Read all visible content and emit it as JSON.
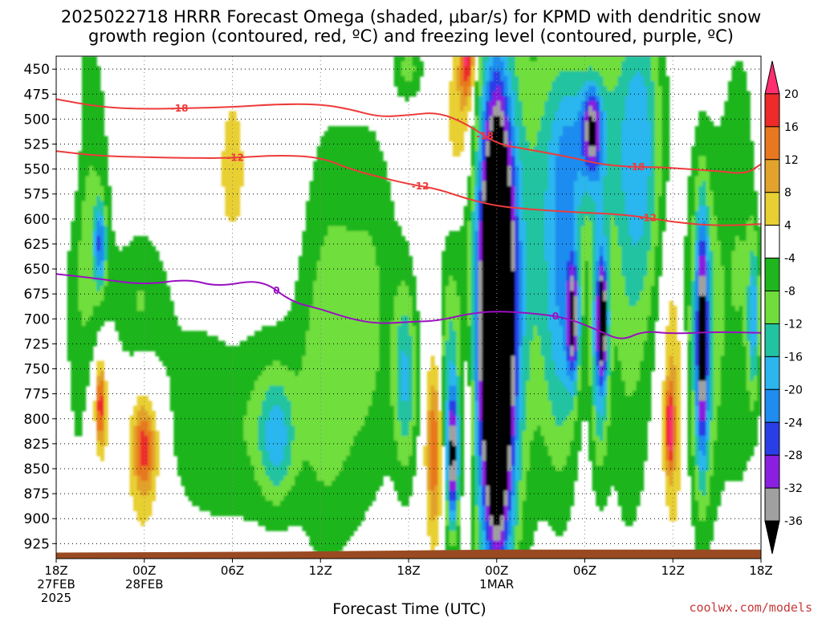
{
  "title_line1": "2025022718 HRRR Forecast Omega (shaded, μbar/s) for KPMD with dendritic snow",
  "title_line2": "growth region (contoured, red, ºC) and freezing level (contoured, purple, ºC)",
  "x_axis_title": "Forecast Time (UTC)",
  "credit": "coolwx.com/models",
  "chart_data": {
    "type": "heatmap",
    "y_ticks": [
      450,
      475,
      500,
      525,
      550,
      575,
      600,
      625,
      650,
      675,
      700,
      725,
      750,
      775,
      800,
      825,
      850,
      875,
      900,
      925
    ],
    "y_range": [
      437,
      940
    ],
    "x_range_hours": [
      0,
      48
    ],
    "x_ticks": [
      {
        "h": 0,
        "l1": "18Z",
        "l2": "27FEB",
        "l3": "2025"
      },
      {
        "h": 6,
        "l1": "00Z",
        "l2": "28FEB",
        "l3": ""
      },
      {
        "h": 12,
        "l1": "06Z",
        "l2": "",
        "l3": ""
      },
      {
        "h": 18,
        "l1": "12Z",
        "l2": "",
        "l3": ""
      },
      {
        "h": 24,
        "l1": "18Z",
        "l2": "",
        "l3": ""
      },
      {
        "h": 30,
        "l1": "00Z",
        "l2": "1MAR",
        "l3": ""
      },
      {
        "h": 36,
        "l1": "06Z",
        "l2": "",
        "l3": ""
      },
      {
        "h": 42,
        "l1": "12Z",
        "l2": "",
        "l3": ""
      },
      {
        "h": 48,
        "l1": "18Z",
        "l2": "",
        "l3": ""
      }
    ],
    "colorbar": {
      "labels": [
        "20",
        "16",
        "12",
        "8",
        "4",
        "-4",
        "-8",
        "-12",
        "-16",
        "-20",
        "-24",
        "-28",
        "-32",
        "-36"
      ],
      "colors": [
        "#ff2f6f",
        "#ee2a2a",
        "#e8781f",
        "#e2a22b",
        "#e8cf33",
        "#ffffff",
        "#1fb51f",
        "#6fde3c",
        "#22c3a0",
        "#2bb6ee",
        "#1e8cf0",
        "#2a3ee6",
        "#8a1fe0",
        "#a0a0a0",
        "#000000"
      ]
    },
    "omega_blobs": [
      {
        "h": 2.2,
        "p": 650,
        "rh": 1.5,
        "rp": 240,
        "v": -10
      },
      {
        "h": 3.0,
        "p": 625,
        "rh": 0.4,
        "rp": 40,
        "v": -18
      },
      {
        "h": 3.0,
        "p": 790,
        "rh": 1.1,
        "rp": 90,
        "v": 9
      },
      {
        "h": 3.0,
        "p": 785,
        "rh": 0.3,
        "rp": 40,
        "v": 17
      },
      {
        "h": 6.0,
        "p": 820,
        "rh": 1.4,
        "rp": 110,
        "v": 9
      },
      {
        "h": 6.0,
        "p": 830,
        "rh": 0.7,
        "rp": 40,
        "v": 13
      },
      {
        "h": 1.0,
        "p": 530,
        "rh": 0.8,
        "rp": 70,
        "v": 5
      },
      {
        "h": 5.8,
        "p": 690,
        "rh": 1.8,
        "rp": 80,
        "v": -9
      },
      {
        "h": 12.0,
        "p": 800,
        "rh": 6.0,
        "rp": 120,
        "v": -8
      },
      {
        "h": 15.0,
        "p": 820,
        "rh": 1.2,
        "rp": 60,
        "v": -13
      },
      {
        "h": 12.0,
        "p": 560,
        "rh": 1.5,
        "rp": 150,
        "v": 5
      },
      {
        "h": 18.5,
        "p": 720,
        "rh": 2.0,
        "rp": 220,
        "v": -9
      },
      {
        "h": 21.5,
        "p": 690,
        "rh": 2.0,
        "rp": 200,
        "v": -8
      },
      {
        "h": 23.8,
        "p": 760,
        "rh": 0.8,
        "rp": 100,
        "v": -15
      },
      {
        "h": 24.0,
        "p": 450,
        "rh": 1.0,
        "rp": 30,
        "v": -9
      },
      {
        "h": 25.8,
        "p": 830,
        "rh": 0.6,
        "rp": 90,
        "v": 18
      },
      {
        "h": 26.8,
        "p": 780,
        "rh": 0.8,
        "rp": 140,
        "v": -14
      },
      {
        "h": 27.0,
        "p": 840,
        "rh": 0.35,
        "rp": 60,
        "v": -28
      },
      {
        "h": 28.0,
        "p": 820,
        "rh": 0.4,
        "rp": 120,
        "v": 9
      },
      {
        "h": 27.5,
        "p": 500,
        "rh": 1.0,
        "rp": 80,
        "v": 9
      },
      {
        "h": 28.0,
        "p": 440,
        "rh": 0.5,
        "rp": 40,
        "v": 20
      },
      {
        "h": 30.0,
        "p": 690,
        "rh": 2.2,
        "rp": 300,
        "v": -12
      },
      {
        "h": 30.0,
        "p": 700,
        "rh": 1.3,
        "rp": 215,
        "v": -35
      },
      {
        "h": 30.0,
        "p": 710,
        "rh": 0.9,
        "rp": 200,
        "v": -40
      },
      {
        "h": 33.0,
        "p": 600,
        "rh": 2.0,
        "rp": 250,
        "v": -9
      },
      {
        "h": 34.5,
        "p": 680,
        "rh": 1.2,
        "rp": 180,
        "v": -15
      },
      {
        "h": 35.2,
        "p": 700,
        "rh": 0.4,
        "rp": 60,
        "v": -28
      },
      {
        "h": 36.0,
        "p": 520,
        "rh": 2.0,
        "rp": 90,
        "v": -16
      },
      {
        "h": 36.5,
        "p": 510,
        "rh": 0.6,
        "rp": 40,
        "v": -22
      },
      {
        "h": 37.0,
        "p": 720,
        "rh": 0.6,
        "rp": 120,
        "v": -20
      },
      {
        "h": 37.2,
        "p": 700,
        "rh": 0.3,
        "rp": 50,
        "v": -29
      },
      {
        "h": 39.0,
        "p": 620,
        "rh": 1.8,
        "rp": 300,
        "v": -10
      },
      {
        "h": 40.0,
        "p": 520,
        "rh": 1.5,
        "rp": 150,
        "v": -12
      },
      {
        "h": 42.0,
        "p": 780,
        "rh": 0.8,
        "rp": 140,
        "v": 10
      },
      {
        "h": 41.8,
        "p": 810,
        "rh": 0.3,
        "rp": 40,
        "v": 17
      },
      {
        "h": 44.0,
        "p": 720,
        "rh": 1.2,
        "rp": 180,
        "v": -15
      },
      {
        "h": 44.0,
        "p": 720,
        "rh": 0.4,
        "rp": 120,
        "v": -27
      },
      {
        "h": 46.5,
        "p": 650,
        "rh": 1.5,
        "rp": 250,
        "v": -8
      },
      {
        "h": 48.0,
        "p": 500,
        "rh": 0.4,
        "rp": 80,
        "v": 6
      },
      {
        "h": 47.5,
        "p": 700,
        "rh": 0.4,
        "rp": 80,
        "v": -15
      }
    ],
    "contours": [
      {
        "label": "-18",
        "color": "#ee3b3b",
        "label_at": [
          8.4,
          29.2,
          39.5
        ],
        "points": [
          [
            0,
            480
          ],
          [
            3,
            488
          ],
          [
            6,
            490
          ],
          [
            9,
            489
          ],
          [
            12,
            488
          ],
          [
            15,
            485
          ],
          [
            18,
            485
          ],
          [
            20,
            490
          ],
          [
            22,
            498
          ],
          [
            24,
            496
          ],
          [
            26,
            493
          ],
          [
            28,
            505
          ],
          [
            30,
            525
          ],
          [
            32,
            530
          ],
          [
            35,
            538
          ],
          [
            37,
            545
          ],
          [
            39,
            548
          ],
          [
            41,
            548
          ],
          [
            43,
            550
          ],
          [
            45,
            552
          ],
          [
            47,
            555
          ],
          [
            48,
            545
          ]
        ]
      },
      {
        "label": "-12",
        "color": "#ee3b3b",
        "label_at": [
          12.2,
          24.8,
          40.3
        ],
        "points": [
          [
            0,
            532
          ],
          [
            3,
            537
          ],
          [
            6,
            538
          ],
          [
            9,
            539
          ],
          [
            12,
            539
          ],
          [
            15,
            536
          ],
          [
            18,
            538
          ],
          [
            20,
            550
          ],
          [
            22,
            558
          ],
          [
            24,
            565
          ],
          [
            26,
            570
          ],
          [
            28,
            580
          ],
          [
            30,
            587
          ],
          [
            32,
            590
          ],
          [
            35,
            593
          ],
          [
            38,
            595
          ],
          [
            40,
            598
          ],
          [
            42,
            603
          ],
          [
            45,
            607
          ],
          [
            48,
            605
          ]
        ]
      },
      {
        "label": "0",
        "color": "#9a10c0",
        "label_at": [
          15.0,
          34.0
        ],
        "points": [
          [
            0,
            655
          ],
          [
            3,
            660
          ],
          [
            6,
            666
          ],
          [
            9,
            660
          ],
          [
            11,
            668
          ],
          [
            14,
            660
          ],
          [
            16,
            683
          ],
          [
            18,
            690
          ],
          [
            20,
            700
          ],
          [
            22,
            705
          ],
          [
            24,
            703
          ],
          [
            26,
            702
          ],
          [
            28,
            695
          ],
          [
            30,
            692
          ],
          [
            33,
            695
          ],
          [
            35,
            700
          ],
          [
            37,
            712
          ],
          [
            38.5,
            722
          ],
          [
            40,
            712
          ],
          [
            42,
            715
          ],
          [
            45,
            713
          ],
          [
            48,
            714
          ]
        ]
      }
    ],
    "terrain_hpa": 932
  }
}
